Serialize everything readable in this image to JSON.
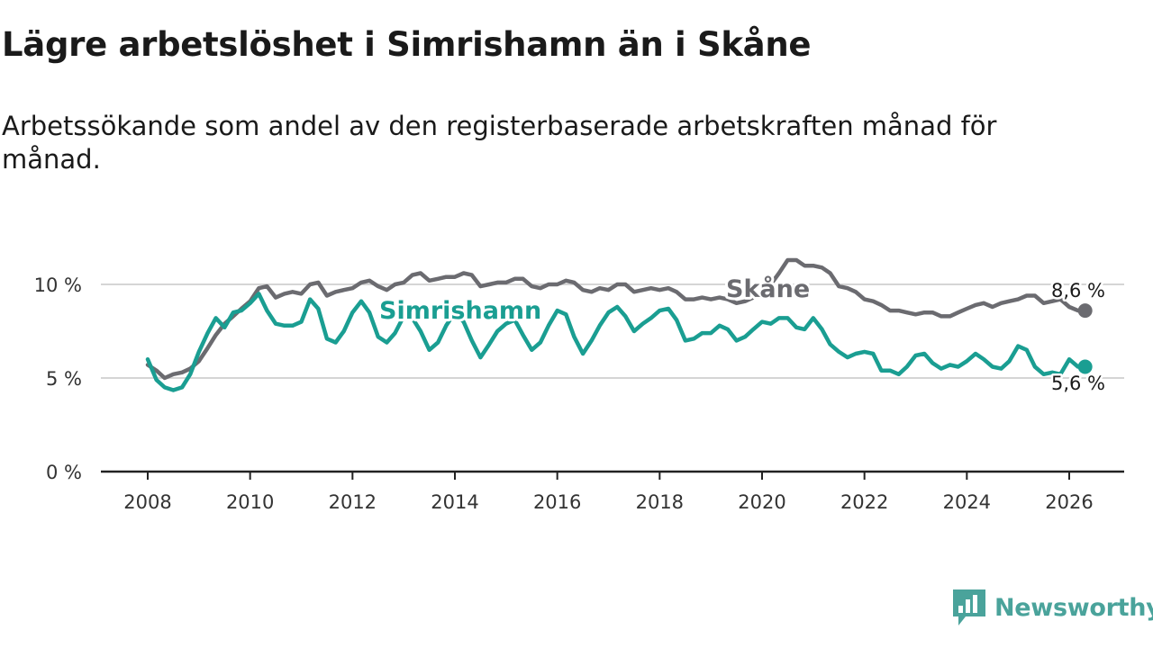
{
  "title": "Lägre arbetslöshet i Simrishamn än i Skåne",
  "subtitle": "Arbetssökande som andel av den registerbaserade arbetskraften månad för månad.",
  "brand": {
    "name": "Newsworthy",
    "icon": "newsworthy-logo-icon",
    "color": "#4aa39b"
  },
  "colors": {
    "skane": "#6b6b70",
    "simrishamn": "#1a9e92",
    "axis": "#222222",
    "grid": "#d5d5d5"
  },
  "chart_data": {
    "type": "line",
    "title": "Lägre arbetslöshet i Simrishamn än i Skåne",
    "xlabel": "",
    "ylabel": "",
    "xlim": [
      2007.6,
      2027.1
    ],
    "ylim": [
      0,
      10
    ],
    "x_ticks": [
      2008,
      2010,
      2012,
      2014,
      2016,
      2018,
      2020,
      2022,
      2024,
      2026
    ],
    "x_tick_labels": [
      "2008",
      "2010",
      "2012",
      "2014",
      "2016",
      "2018",
      "2020",
      "2022",
      "2024",
      "2026"
    ],
    "y_ticks": [
      0,
      5,
      10
    ],
    "y_tick_labels": [
      "0 %",
      "5 %",
      "10 %"
    ],
    "grid": true,
    "series": [
      {
        "name": "Skåne",
        "label": "Skåne",
        "end_label": "8,6 %",
        "color": "#6b6b70",
        "points": [
          [
            2008.0,
            5.7
          ],
          [
            2008.17,
            5.4
          ],
          [
            2008.33,
            5.0
          ],
          [
            2008.5,
            5.2
          ],
          [
            2008.67,
            5.3
          ],
          [
            2008.83,
            5.5
          ],
          [
            2009.0,
            5.9
          ],
          [
            2009.17,
            6.6
          ],
          [
            2009.33,
            7.3
          ],
          [
            2009.5,
            7.9
          ],
          [
            2009.67,
            8.3
          ],
          [
            2009.83,
            8.7
          ],
          [
            2010.0,
            9.1
          ],
          [
            2010.17,
            9.8
          ],
          [
            2010.33,
            9.9
          ],
          [
            2010.5,
            9.3
          ],
          [
            2010.67,
            9.5
          ],
          [
            2010.83,
            9.6
          ],
          [
            2011.0,
            9.5
          ],
          [
            2011.17,
            10.0
          ],
          [
            2011.33,
            10.1
          ],
          [
            2011.5,
            9.4
          ],
          [
            2011.67,
            9.6
          ],
          [
            2011.83,
            9.7
          ],
          [
            2012.0,
            9.8
          ],
          [
            2012.17,
            10.1
          ],
          [
            2012.33,
            10.2
          ],
          [
            2012.5,
            9.9
          ],
          [
            2012.67,
            9.7
          ],
          [
            2012.83,
            10.0
          ],
          [
            2013.0,
            10.1
          ],
          [
            2013.17,
            10.5
          ],
          [
            2013.33,
            10.6
          ],
          [
            2013.5,
            10.2
          ],
          [
            2013.67,
            10.3
          ],
          [
            2013.83,
            10.4
          ],
          [
            2014.0,
            10.4
          ],
          [
            2014.17,
            10.6
          ],
          [
            2014.33,
            10.5
          ],
          [
            2014.5,
            9.9
          ],
          [
            2014.67,
            10.0
          ],
          [
            2014.83,
            10.1
          ],
          [
            2015.0,
            10.1
          ],
          [
            2015.17,
            10.3
          ],
          [
            2015.33,
            10.3
          ],
          [
            2015.5,
            9.9
          ],
          [
            2015.67,
            9.8
          ],
          [
            2015.83,
            10.0
          ],
          [
            2016.0,
            10.0
          ],
          [
            2016.17,
            10.2
          ],
          [
            2016.33,
            10.1
          ],
          [
            2016.5,
            9.7
          ],
          [
            2016.67,
            9.6
          ],
          [
            2016.83,
            9.8
          ],
          [
            2017.0,
            9.7
          ],
          [
            2017.17,
            10.0
          ],
          [
            2017.33,
            10.0
          ],
          [
            2017.5,
            9.6
          ],
          [
            2017.67,
            9.7
          ],
          [
            2017.83,
            9.8
          ],
          [
            2018.0,
            9.7
          ],
          [
            2018.17,
            9.8
          ],
          [
            2018.33,
            9.6
          ],
          [
            2018.5,
            9.2
          ],
          [
            2018.67,
            9.2
          ],
          [
            2018.83,
            9.3
          ],
          [
            2019.0,
            9.2
          ],
          [
            2019.17,
            9.3
          ],
          [
            2019.33,
            9.2
          ],
          [
            2019.5,
            9.0
          ],
          [
            2019.67,
            9.1
          ],
          [
            2019.83,
            9.3
          ],
          [
            2020.0,
            9.5
          ],
          [
            2020.17,
            10.0
          ],
          [
            2020.33,
            10.6
          ],
          [
            2020.5,
            11.3
          ],
          [
            2020.67,
            11.3
          ],
          [
            2020.83,
            11.0
          ],
          [
            2021.0,
            11.0
          ],
          [
            2021.17,
            10.9
          ],
          [
            2021.33,
            10.6
          ],
          [
            2021.5,
            9.9
          ],
          [
            2021.67,
            9.8
          ],
          [
            2021.83,
            9.6
          ],
          [
            2022.0,
            9.2
          ],
          [
            2022.17,
            9.1
          ],
          [
            2022.33,
            8.9
          ],
          [
            2022.5,
            8.6
          ],
          [
            2022.67,
            8.6
          ],
          [
            2022.83,
            8.5
          ],
          [
            2023.0,
            8.4
          ],
          [
            2023.17,
            8.5
          ],
          [
            2023.33,
            8.5
          ],
          [
            2023.5,
            8.3
          ],
          [
            2023.67,
            8.3
          ],
          [
            2023.83,
            8.5
          ],
          [
            2024.0,
            8.7
          ],
          [
            2024.17,
            8.9
          ],
          [
            2024.33,
            9.0
          ],
          [
            2024.5,
            8.8
          ],
          [
            2024.67,
            9.0
          ],
          [
            2024.83,
            9.1
          ],
          [
            2025.0,
            9.2
          ],
          [
            2025.17,
            9.4
          ],
          [
            2025.33,
            9.4
          ],
          [
            2025.5,
            9.0
          ],
          [
            2025.67,
            9.1
          ],
          [
            2025.83,
            9.2
          ],
          [
            2026.0,
            8.8
          ],
          [
            2026.17,
            8.6
          ]
        ]
      },
      {
        "name": "Simrishamn",
        "label": "Simrishamn",
        "end_label": "5,6 %",
        "color": "#1a9e92",
        "points": [
          [
            2008.0,
            6.0
          ],
          [
            2008.17,
            4.9
          ],
          [
            2008.33,
            4.5
          ],
          [
            2008.5,
            4.35
          ],
          [
            2008.67,
            4.5
          ],
          [
            2008.83,
            5.2
          ],
          [
            2009.0,
            6.4
          ],
          [
            2009.17,
            7.4
          ],
          [
            2009.33,
            8.2
          ],
          [
            2009.5,
            7.7
          ],
          [
            2009.67,
            8.5
          ],
          [
            2009.83,
            8.6
          ],
          [
            2010.0,
            9.0
          ],
          [
            2010.17,
            9.5
          ],
          [
            2010.33,
            8.6
          ],
          [
            2010.5,
            7.9
          ],
          [
            2010.67,
            7.8
          ],
          [
            2010.83,
            7.8
          ],
          [
            2011.0,
            8.0
          ],
          [
            2011.17,
            9.2
          ],
          [
            2011.33,
            8.7
          ],
          [
            2011.5,
            7.1
          ],
          [
            2011.67,
            6.9
          ],
          [
            2011.83,
            7.5
          ],
          [
            2012.0,
            8.5
          ],
          [
            2012.17,
            9.1
          ],
          [
            2012.33,
            8.5
          ],
          [
            2012.5,
            7.2
          ],
          [
            2012.67,
            6.9
          ],
          [
            2012.83,
            7.4
          ],
          [
            2013.0,
            8.3
          ],
          [
            2013.17,
            8.2
          ],
          [
            2013.33,
            7.5
          ],
          [
            2013.5,
            6.5
          ],
          [
            2013.67,
            6.9
          ],
          [
            2013.83,
            7.8
          ],
          [
            2014.0,
            8.5
          ],
          [
            2014.17,
            8.0
          ],
          [
            2014.33,
            7.0
          ],
          [
            2014.5,
            6.1
          ],
          [
            2014.67,
            6.8
          ],
          [
            2014.83,
            7.5
          ],
          [
            2015.0,
            7.9
          ],
          [
            2015.17,
            8.1
          ],
          [
            2015.33,
            7.3
          ],
          [
            2015.5,
            6.5
          ],
          [
            2015.67,
            6.9
          ],
          [
            2015.83,
            7.8
          ],
          [
            2016.0,
            8.6
          ],
          [
            2016.17,
            8.4
          ],
          [
            2016.33,
            7.2
          ],
          [
            2016.5,
            6.3
          ],
          [
            2016.67,
            7.0
          ],
          [
            2016.83,
            7.8
          ],
          [
            2017.0,
            8.5
          ],
          [
            2017.17,
            8.8
          ],
          [
            2017.33,
            8.3
          ],
          [
            2017.5,
            7.5
          ],
          [
            2017.67,
            7.9
          ],
          [
            2017.83,
            8.2
          ],
          [
            2018.0,
            8.6
          ],
          [
            2018.17,
            8.7
          ],
          [
            2018.33,
            8.1
          ],
          [
            2018.5,
            7.0
          ],
          [
            2018.67,
            7.1
          ],
          [
            2018.83,
            7.4
          ],
          [
            2019.0,
            7.4
          ],
          [
            2019.17,
            7.8
          ],
          [
            2019.33,
            7.6
          ],
          [
            2019.5,
            7.0
          ],
          [
            2019.67,
            7.2
          ],
          [
            2019.83,
            7.6
          ],
          [
            2020.0,
            8.0
          ],
          [
            2020.17,
            7.9
          ],
          [
            2020.33,
            8.2
          ],
          [
            2020.5,
            8.2
          ],
          [
            2020.67,
            7.7
          ],
          [
            2020.83,
            7.6
          ],
          [
            2021.0,
            8.2
          ],
          [
            2021.17,
            7.6
          ],
          [
            2021.33,
            6.8
          ],
          [
            2021.5,
            6.4
          ],
          [
            2021.67,
            6.1
          ],
          [
            2021.83,
            6.3
          ],
          [
            2022.0,
            6.4
          ],
          [
            2022.17,
            6.3
          ],
          [
            2022.33,
            5.4
          ],
          [
            2022.5,
            5.4
          ],
          [
            2022.67,
            5.2
          ],
          [
            2022.83,
            5.6
          ],
          [
            2023.0,
            6.2
          ],
          [
            2023.17,
            6.3
          ],
          [
            2023.33,
            5.8
          ],
          [
            2023.5,
            5.5
          ],
          [
            2023.67,
            5.7
          ],
          [
            2023.83,
            5.6
          ],
          [
            2024.0,
            5.9
          ],
          [
            2024.17,
            6.3
          ],
          [
            2024.33,
            6.0
          ],
          [
            2024.5,
            5.6
          ],
          [
            2024.67,
            5.5
          ],
          [
            2024.83,
            5.9
          ],
          [
            2025.0,
            6.7
          ],
          [
            2025.17,
            6.5
          ],
          [
            2025.33,
            5.6
          ],
          [
            2025.5,
            5.2
          ],
          [
            2025.67,
            5.3
          ],
          [
            2025.83,
            5.2
          ],
          [
            2026.0,
            6.0
          ],
          [
            2026.17,
            5.6
          ]
        ]
      }
    ]
  }
}
